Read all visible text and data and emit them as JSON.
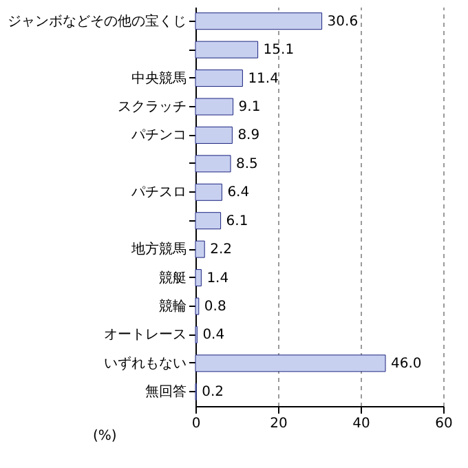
{
  "chart_data": {
    "type": "bar",
    "orientation": "horizontal",
    "xlabel": "(%)",
    "categories": [
      "ジャンボなどその他の宝くじ",
      null,
      "中央競馬",
      "スクラッチ",
      "パチンコ",
      null,
      "パチスロ",
      null,
      "地方競馬",
      "競艇",
      "競輪",
      "オートレース",
      "いずれもない",
      "無回答"
    ],
    "values": [
      30.6,
      15.1,
      11.4,
      9.1,
      8.9,
      8.5,
      6.4,
      6.1,
      2.2,
      1.4,
      0.8,
      0.4,
      46.0,
      0.2
    ],
    "value_labels": [
      "30.6",
      "15.1",
      "11.4",
      "9.1",
      "8.9",
      "8.5",
      "6.4",
      "6.1",
      "2.2",
      "1.4",
      "0.8",
      "0.4",
      "46.0",
      "0.2"
    ],
    "color": "#c8d0f0",
    "xlim": [
      0,
      60
    ],
    "xticks": [
      0,
      20,
      40,
      60
    ],
    "grid": "x"
  }
}
